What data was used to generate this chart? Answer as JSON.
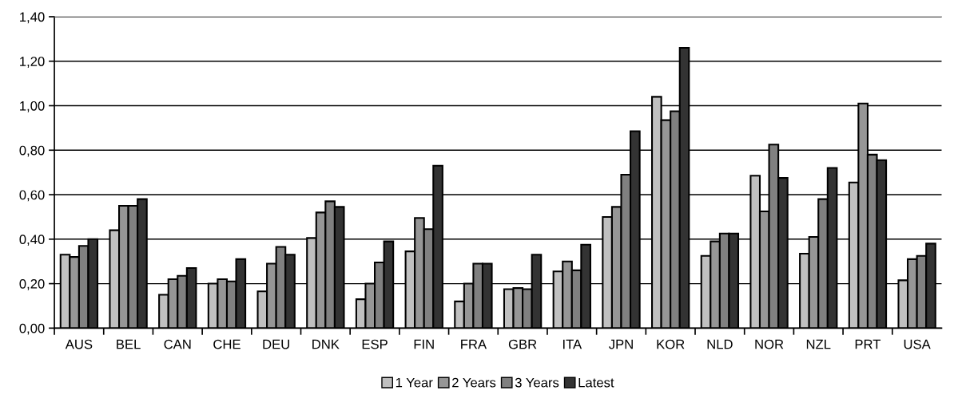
{
  "chart_data": {
    "type": "bar",
    "categories": [
      "AUS",
      "BEL",
      "CAN",
      "CHE",
      "DEU",
      "DNK",
      "ESP",
      "FIN",
      "FRA",
      "GBR",
      "ITA",
      "JPN",
      "KOR",
      "NLD",
      "NOR",
      "NZL",
      "PRT",
      "USA"
    ],
    "series": [
      {
        "name": "1 Year",
        "color": "#c0c0c0",
        "values": [
          0.33,
          0.44,
          0.15,
          0.2,
          0.165,
          0.405,
          0.13,
          0.345,
          0.12,
          0.175,
          0.255,
          0.5,
          1.04,
          0.325,
          0.685,
          0.335,
          0.655,
          0.215
        ]
      },
      {
        "name": "2 Years",
        "color": "#969696",
        "values": [
          0.32,
          0.55,
          0.22,
          0.22,
          0.29,
          0.52,
          0.2,
          0.495,
          0.2,
          0.18,
          0.3,
          0.545,
          0.935,
          0.39,
          0.525,
          0.41,
          1.01,
          0.31
        ]
      },
      {
        "name": "3 Years",
        "color": "#808080",
        "values": [
          0.37,
          0.55,
          0.235,
          0.21,
          0.365,
          0.57,
          0.295,
          0.445,
          0.29,
          0.175,
          0.26,
          0.69,
          0.975,
          0.425,
          0.825,
          0.58,
          0.78,
          0.325
        ]
      },
      {
        "name": "Latest",
        "color": "#333333",
        "values": [
          0.4,
          0.58,
          0.27,
          0.31,
          0.33,
          0.545,
          0.39,
          0.73,
          0.29,
          0.33,
          0.375,
          0.885,
          1.26,
          0.425,
          0.675,
          0.72,
          0.755,
          0.38
        ]
      }
    ],
    "ylim": [
      0,
      1.4
    ],
    "yticks": [
      {
        "value": 0,
        "label": "0,00"
      },
      {
        "value": 0.2,
        "label": "0,20"
      },
      {
        "value": 0.4,
        "label": "0,40"
      },
      {
        "value": 0.6,
        "label": "0,60"
      },
      {
        "value": 0.8,
        "label": "0,80"
      },
      {
        "value": 1.0,
        "label": "1,00"
      },
      {
        "value": 1.2,
        "label": "1,20"
      },
      {
        "value": 1.4,
        "label": "1,40"
      }
    ],
    "grid": "y",
    "legend": "bottom"
  }
}
